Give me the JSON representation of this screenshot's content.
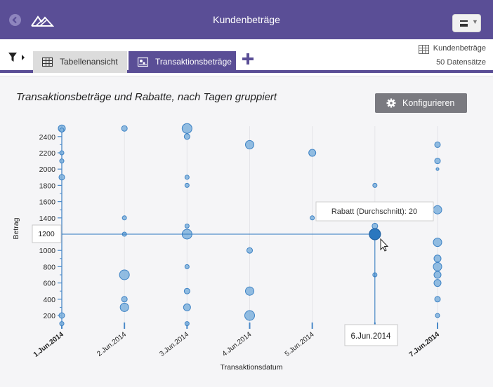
{
  "app": {
    "title": "Kundenbeträge"
  },
  "toolbar": {
    "tabs": [
      {
        "label": "Tabellenansicht",
        "active": false,
        "icon": "table-icon"
      },
      {
        "label": "Transaktionsbeträge",
        "active": true,
        "icon": "chart-icon"
      }
    ]
  },
  "datasource": {
    "name": "Kundenbeträge",
    "count": "50 Datensätze"
  },
  "config_button": {
    "label": "Konfigurieren"
  },
  "colors": {
    "accent": "#5a4e96",
    "bubble_fill": "#7fb1dd",
    "bubble_stroke": "#3d82c4",
    "highlight": "#2a77bf"
  },
  "tooltip": {
    "text": "Rabatt (Durchschnitt): 20"
  },
  "crosshair": {
    "x_label": "6.Jun.2014",
    "y_label": "1200"
  },
  "chart_data": {
    "type": "scatter",
    "title": "Transaktionsbeträge und Rabatte, nach Tagen gruppiert",
    "xlabel": "Transaktionsdatum",
    "ylabel": "Betrag",
    "ylim": [
      100,
      2500
    ],
    "yticks": [
      200,
      400,
      600,
      800,
      1000,
      1200,
      1400,
      1600,
      1800,
      2000,
      2200,
      2400
    ],
    "xlim": [
      1,
      7
    ],
    "xticks": [
      {
        "value": 1,
        "label": "1.Jun.2014"
      },
      {
        "value": 2,
        "label": "2.Jun.2014"
      },
      {
        "value": 3,
        "label": "3.Jun.2014"
      },
      {
        "value": 4,
        "label": "4.Jun.2014"
      },
      {
        "value": 5,
        "label": "5.Jun.2014"
      },
      {
        "value": 6,
        "label": "6.Jun.2014"
      },
      {
        "value": 7,
        "label": "7.Jun.2014"
      }
    ],
    "grid": true,
    "size_field": "Rabatt",
    "points": [
      {
        "x": 1.0,
        "y": 2500,
        "r": 5
      },
      {
        "x": 1.0,
        "y": 2200,
        "r": 3
      },
      {
        "x": 1.0,
        "y": 2100,
        "r": 3
      },
      {
        "x": 1.0,
        "y": 1900,
        "r": 4
      },
      {
        "x": 1.0,
        "y": 200,
        "r": 4
      },
      {
        "x": 1.0,
        "y": 100,
        "r": 3
      },
      {
        "x": 1.0,
        "y": 2480,
        "r": 3
      },
      {
        "x": 2.0,
        "y": 2500,
        "r": 4
      },
      {
        "x": 2.0,
        "y": 1400,
        "r": 3
      },
      {
        "x": 2.0,
        "y": 1200,
        "r": 3
      },
      {
        "x": 2.0,
        "y": 700,
        "r": 7
      },
      {
        "x": 2.0,
        "y": 400,
        "r": 4
      },
      {
        "x": 2.0,
        "y": 300,
        "r": 6
      },
      {
        "x": 3.0,
        "y": 2500,
        "r": 7
      },
      {
        "x": 3.0,
        "y": 2400,
        "r": 4
      },
      {
        "x": 3.0,
        "y": 1900,
        "r": 3
      },
      {
        "x": 3.0,
        "y": 1800,
        "r": 3
      },
      {
        "x": 3.0,
        "y": 1300,
        "r": 3
      },
      {
        "x": 3.0,
        "y": 1200,
        "r": 7
      },
      {
        "x": 3.0,
        "y": 800,
        "r": 3
      },
      {
        "x": 3.0,
        "y": 500,
        "r": 4
      },
      {
        "x": 3.0,
        "y": 300,
        "r": 5
      },
      {
        "x": 3.0,
        "y": 100,
        "r": 3
      },
      {
        "x": 4.0,
        "y": 2300,
        "r": 6
      },
      {
        "x": 4.0,
        "y": 1000,
        "r": 4
      },
      {
        "x": 4.0,
        "y": 500,
        "r": 6
      },
      {
        "x": 4.0,
        "y": 200,
        "r": 7
      },
      {
        "x": 5.0,
        "y": 2200,
        "r": 5
      },
      {
        "x": 5.0,
        "y": 1400,
        "r": 3
      },
      {
        "x": 6.0,
        "y": 1800,
        "r": 3
      },
      {
        "x": 6.0,
        "y": 1300,
        "r": 4
      },
      {
        "x": 6.0,
        "y": 1200,
        "r": 8,
        "highlight": true
      },
      {
        "x": 6.0,
        "y": 700,
        "r": 3
      },
      {
        "x": 7.0,
        "y": 2300,
        "r": 4
      },
      {
        "x": 7.0,
        "y": 2100,
        "r": 4
      },
      {
        "x": 7.0,
        "y": 2000,
        "r": 2
      },
      {
        "x": 7.0,
        "y": 1500,
        "r": 6
      },
      {
        "x": 7.0,
        "y": 1100,
        "r": 6
      },
      {
        "x": 7.0,
        "y": 900,
        "r": 5
      },
      {
        "x": 7.0,
        "y": 800,
        "r": 6
      },
      {
        "x": 7.0,
        "y": 700,
        "r": 5
      },
      {
        "x": 7.0,
        "y": 600,
        "r": 5
      },
      {
        "x": 7.0,
        "y": 400,
        "r": 4
      },
      {
        "x": 7.0,
        "y": 200,
        "r": 3
      }
    ]
  }
}
